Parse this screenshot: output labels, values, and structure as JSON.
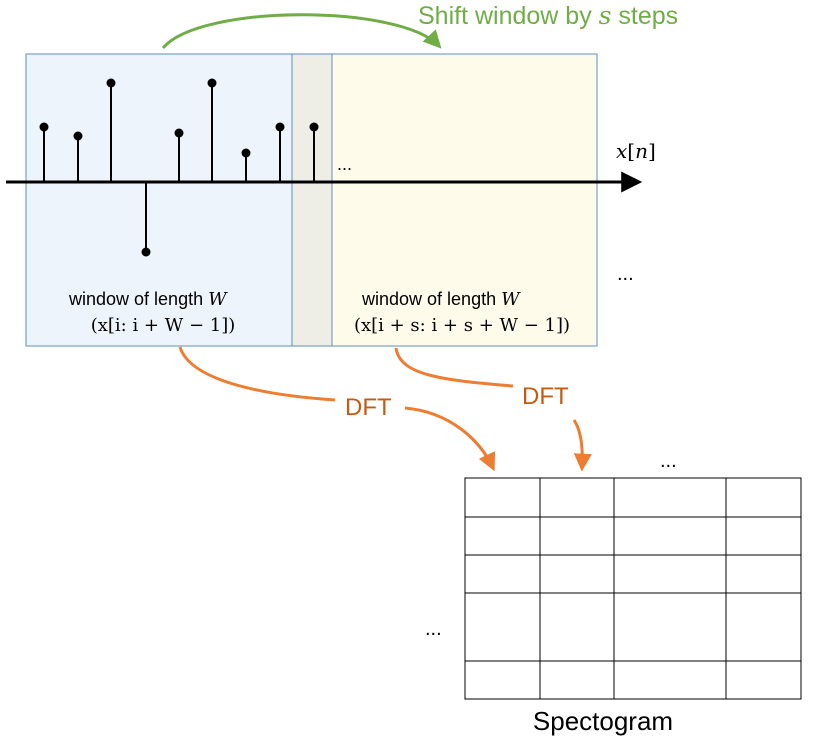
{
  "shift_label": {
    "prefix": "Shift window by ",
    "var": "s",
    "suffix": " steps",
    "color": "#70ad47"
  },
  "signal_label": {
    "x": "x",
    "lb": "[",
    "n": "n",
    "rb": "]"
  },
  "window1": {
    "line1_prefix": "window of length ",
    "line1_var": "W",
    "line2": "(x[i: i + W − 1])",
    "fill": "#eef4fb"
  },
  "window2": {
    "line1_prefix": "window of length ",
    "line1_var": "W",
    "line2": "(x[i + s: i + s + W − 1])",
    "fill": "#fffbea"
  },
  "overlap_fill": "#eeeee6",
  "dft_label_1": "DFT",
  "dft_label_2": "DFT",
  "dft_color": "#c55a11",
  "arrow_color": "#ed7d31",
  "ellipsis_signal": "...",
  "ellipsis_right": "...",
  "ellipsis_grid_top": "...",
  "ellipsis_grid_left": "...",
  "spectrogram_label": "Spectogram",
  "spectrogram_grid": {
    "rows": 5,
    "cols": 4
  }
}
